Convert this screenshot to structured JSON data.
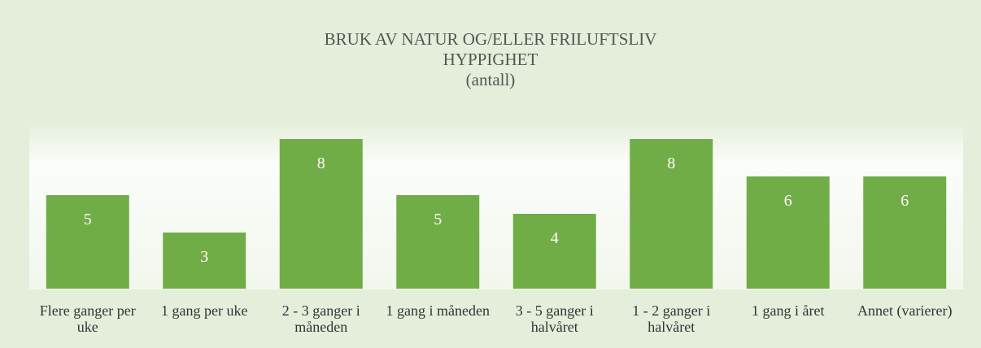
{
  "chart_data": {
    "type": "bar",
    "title": [
      "BRUK AV NATUR OG/ELLER FRILUFTSLIV",
      "HYPPIGHET",
      "(antall)"
    ],
    "categories": [
      "Flere ganger per uke",
      "1 gang per uke",
      "2 - 3 ganger i måneden",
      "1 gang i måneden",
      "3 - 5 ganger i halvåret",
      "1 - 2 ganger i halvåret",
      "1 gang i året",
      "Annet (varierer)"
    ],
    "values": [
      5,
      3,
      8,
      5,
      4,
      8,
      6,
      6
    ],
    "color": "#70ad47"
  }
}
